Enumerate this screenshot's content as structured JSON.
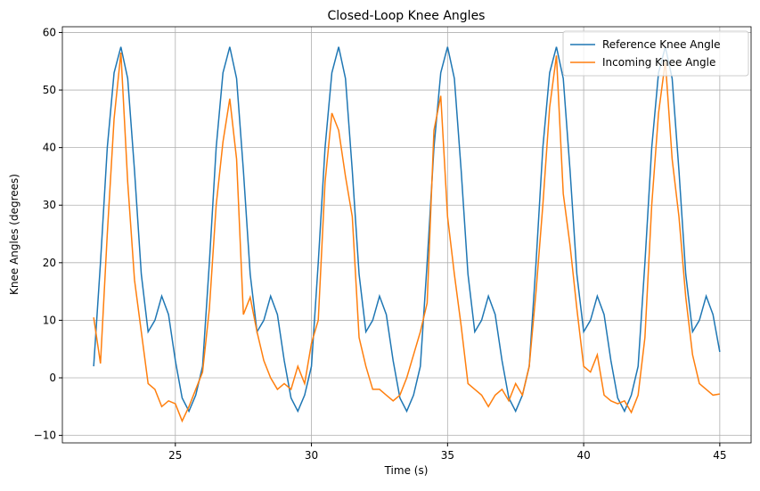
{
  "chart_data": {
    "type": "line",
    "title": "Closed-Loop Knee Angles",
    "x_label": "Time (s)",
    "y_label": "Knee Angles (degrees)",
    "x": [
      22,
      22.25,
      22.5,
      22.75,
      23,
      23.25,
      23.5,
      23.75,
      24,
      24.25,
      24.5,
      24.75,
      25,
      25.25,
      25.5,
      25.75,
      26,
      26.25,
      26.5,
      26.75,
      27,
      27.25,
      27.5,
      27.75,
      28,
      28.25,
      28.5,
      28.75,
      29,
      29.25,
      29.5,
      29.75,
      30,
      30.25,
      30.5,
      30.75,
      31,
      31.25,
      31.5,
      31.75,
      32,
      32.25,
      32.5,
      32.75,
      33,
      33.25,
      33.5,
      33.75,
      34,
      34.25,
      34.5,
      34.75,
      35,
      35.25,
      35.5,
      35.75,
      36,
      36.25,
      36.5,
      36.75,
      37,
      37.25,
      37.5,
      37.75,
      38,
      38.25,
      38.5,
      38.75,
      39,
      39.25,
      39.5,
      39.75,
      40,
      40.25,
      40.5,
      40.75,
      41,
      41.25,
      41.5,
      41.75,
      42,
      42.25,
      42.5,
      42.75,
      43,
      43.25,
      43.5,
      43.75,
      44,
      44.25,
      44.5,
      44.75,
      45
    ],
    "series": [
      {
        "name": "Reference Knee Angle",
        "color": "#1f77b4",
        "values": [
          2,
          20,
          40,
          53,
          57.5,
          52,
          36,
          18,
          8,
          10,
          14.2,
          11,
          3,
          -3.5,
          -5.8,
          -3,
          2,
          20,
          40,
          53,
          57.5,
          52,
          36,
          18,
          8,
          10,
          14.2,
          11,
          3,
          -3.5,
          -5.8,
          -3,
          2,
          20,
          40,
          53,
          57.5,
          52,
          36,
          18,
          8,
          10,
          14.2,
          11,
          3,
          -3.5,
          -5.8,
          -3,
          2,
          20,
          40,
          53,
          57.5,
          52,
          36,
          18,
          8,
          10,
          14.2,
          11,
          3,
          -3.5,
          -5.8,
          -3,
          2,
          20,
          40,
          53,
          57.5,
          52,
          36,
          18,
          8,
          10,
          14.2,
          11,
          3,
          -3.5,
          -5.8,
          -3,
          2,
          20,
          40,
          53,
          57.5,
          52,
          36,
          18,
          8,
          10,
          14.2,
          11,
          4.5
        ]
      },
      {
        "name": "Incoming Knee Angle",
        "color": "#ff7f0e",
        "values": [
          10.5,
          2.5,
          25,
          45,
          56.5,
          34,
          17,
          8,
          -1,
          -2,
          -5,
          -4,
          -4.5,
          -7.5,
          -5,
          -2,
          1,
          12,
          30,
          41,
          48.5,
          38,
          11,
          14,
          8,
          3,
          0,
          -2,
          -1,
          -2,
          2,
          -1,
          6,
          10,
          34,
          46,
          43,
          35,
          28,
          7,
          2,
          -2,
          -2,
          -3,
          -4,
          -3,
          0,
          4,
          8,
          13,
          43,
          49,
          28,
          18,
          9,
          -1,
          -2,
          -3,
          -5,
          -3,
          -2,
          -4,
          -1,
          -3,
          2,
          15,
          30,
          47,
          56,
          32,
          23,
          12,
          2,
          1,
          4,
          -3,
          -4,
          -4.5,
          -4,
          -6,
          -3,
          7,
          30,
          46,
          55,
          38,
          28,
          14,
          4,
          -1,
          -2,
          -3,
          -2.8
        ]
      }
    ],
    "xlim": [
      20.85,
      46.15
    ],
    "ylim": [
      -11.3,
      61.0
    ],
    "xticks": [
      25,
      30,
      35,
      40,
      45
    ],
    "yticks": [
      {
        "value": -10,
        "label": "−10"
      },
      0,
      10,
      20,
      30,
      40,
      50,
      60
    ],
    "grid": true,
    "legend": "upper right"
  }
}
